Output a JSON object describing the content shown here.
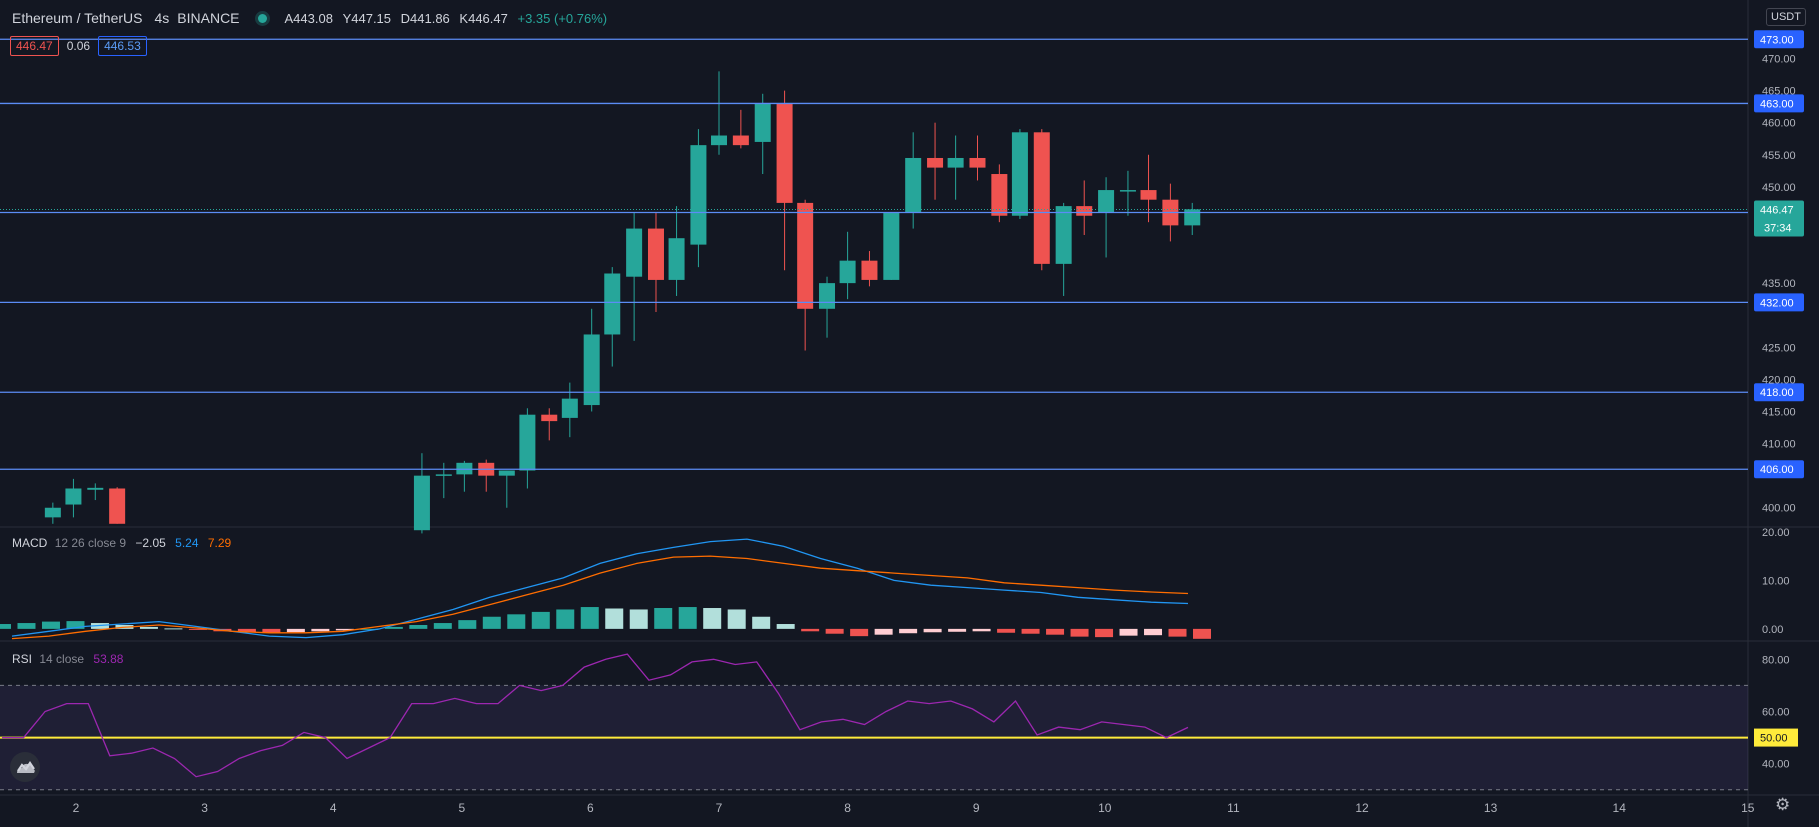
{
  "header": {
    "symbol": "Ethereum / TetherUS",
    "interval": "4s",
    "exchange": "BINANCE",
    "open": "A443.08",
    "high": "Y447.15",
    "low": "D441.86",
    "close": "K446.47",
    "change": "+3.35 (+0.76%)"
  },
  "quote": {
    "bid": "446.47",
    "spread": "0.06",
    "ask": "446.53"
  },
  "currency_label": "USDT",
  "macd": {
    "title": "MACD",
    "params": "12 26 close 9",
    "hist": "−2.05",
    "macd": "5.24",
    "signal": "7.29"
  },
  "rsi": {
    "title": "RSI",
    "params": "14 close",
    "value": "53.88"
  },
  "countdown": "37:34",
  "colors": {
    "background": "#131722",
    "up": "#26a69a",
    "down": "#ef5350",
    "level_line": "#5b8cf5",
    "macd_line": "#2196f3",
    "signal_line": "#ff6d00",
    "rsi_line": "#9c27b0",
    "rsi_mid": "#ffeb3b"
  },
  "icons": {
    "logo": "tradingview-logo-icon",
    "settings": "gear-icon"
  },
  "chart_data": {
    "type": "candlestick",
    "x_ticks": [
      "2",
      "3",
      "4",
      "5",
      "6",
      "7",
      "8",
      "9",
      "10",
      "11",
      "12",
      "13",
      "14",
      "15"
    ],
    "price_ticks": [
      "470.00",
      "465.00",
      "460.00",
      "455.00",
      "450.00",
      "435.00",
      "425.00",
      "420.00",
      "415.00",
      "410.00",
      "400.00"
    ],
    "price_range": [
      397,
      476
    ],
    "horizontal_levels": [
      "473.00",
      "463.00",
      "446.00",
      "432.00",
      "418.00",
      "406.00"
    ],
    "last_price": "446.47",
    "candles": [
      {
        "x": 1.82,
        "o": 398.5,
        "h": 400.8,
        "l": 397.5,
        "c": 400.0
      },
      {
        "x": 1.98,
        "o": 400.5,
        "h": 404.5,
        "l": 398.5,
        "c": 403.0
      },
      {
        "x": 2.15,
        "o": 402.8,
        "h": 403.8,
        "l": 401.2,
        "c": 403.1
      },
      {
        "x": 2.32,
        "o": 403.0,
        "h": 403.2,
        "l": 397.5,
        "c": 397.5
      },
      {
        "x": 4.69,
        "o": 396.5,
        "h": 408.5,
        "l": 396.0,
        "c": 405.0
      },
      {
        "x": 4.86,
        "o": 405.0,
        "h": 407.0,
        "l": 401.5,
        "c": 405.2
      },
      {
        "x": 5.02,
        "o": 405.2,
        "h": 407.3,
        "l": 402.5,
        "c": 407.0
      },
      {
        "x": 5.19,
        "o": 407.0,
        "h": 407.5,
        "l": 402.5,
        "c": 405.0
      },
      {
        "x": 5.35,
        "o": 405.0,
        "h": 405.8,
        "l": 400.0,
        "c": 405.8
      },
      {
        "x": 5.51,
        "o": 405.8,
        "h": 415.5,
        "l": 403.0,
        "c": 414.5
      },
      {
        "x": 5.68,
        "o": 414.5,
        "h": 415.5,
        "l": 410.5,
        "c": 413.5
      },
      {
        "x": 5.84,
        "o": 414.0,
        "h": 419.5,
        "l": 411.0,
        "c": 417.0
      },
      {
        "x": 6.01,
        "o": 416.0,
        "h": 431.0,
        "l": 415.0,
        "c": 427.0
      },
      {
        "x": 6.17,
        "o": 427.0,
        "h": 437.5,
        "l": 422.0,
        "c": 436.5
      },
      {
        "x": 6.34,
        "o": 436.0,
        "h": 446.0,
        "l": 426.0,
        "c": 443.5
      },
      {
        "x": 6.51,
        "o": 443.5,
        "h": 446.0,
        "l": 430.5,
        "c": 435.5
      },
      {
        "x": 6.67,
        "o": 435.5,
        "h": 447.0,
        "l": 433.0,
        "c": 442.0
      },
      {
        "x": 6.84,
        "o": 441.0,
        "h": 459.0,
        "l": 437.5,
        "c": 456.5
      },
      {
        "x": 7.0,
        "o": 456.5,
        "h": 468.0,
        "l": 455.0,
        "c": 458.0
      },
      {
        "x": 7.17,
        "o": 458.0,
        "h": 462.0,
        "l": 456.0,
        "c": 456.5
      },
      {
        "x": 7.34,
        "o": 457.0,
        "h": 464.5,
        "l": 452.0,
        "c": 463.0
      },
      {
        "x": 7.51,
        "o": 463.0,
        "h": 465.0,
        "l": 437.0,
        "c": 447.5
      },
      {
        "x": 7.67,
        "o": 447.5,
        "h": 448.0,
        "l": 424.5,
        "c": 431.0
      },
      {
        "x": 7.84,
        "o": 431.0,
        "h": 436.0,
        "l": 426.5,
        "c": 435.0
      },
      {
        "x": 8.0,
        "o": 435.0,
        "h": 443.0,
        "l": 432.5,
        "c": 438.5
      },
      {
        "x": 8.17,
        "o": 438.5,
        "h": 440.0,
        "l": 434.5,
        "c": 435.5
      },
      {
        "x": 8.34,
        "o": 435.5,
        "h": 446.0,
        "l": 435.5,
        "c": 446.0
      },
      {
        "x": 8.51,
        "o": 446.0,
        "h": 458.5,
        "l": 443.5,
        "c": 454.5
      },
      {
        "x": 8.68,
        "o": 454.5,
        "h": 460.0,
        "l": 448.0,
        "c": 453.0
      },
      {
        "x": 8.84,
        "o": 453.0,
        "h": 458.0,
        "l": 448.0,
        "c": 454.5
      },
      {
        "x": 9.01,
        "o": 454.5,
        "h": 458.0,
        "l": 451.0,
        "c": 453.0
      },
      {
        "x": 9.18,
        "o": 452.0,
        "h": 453.5,
        "l": 444.5,
        "c": 445.5
      },
      {
        "x": 9.34,
        "o": 445.5,
        "h": 459.0,
        "l": 445.0,
        "c": 458.5
      },
      {
        "x": 9.51,
        "o": 458.5,
        "h": 459.0,
        "l": 437.0,
        "c": 438.0
      },
      {
        "x": 9.68,
        "o": 438.0,
        "h": 447.5,
        "l": 433.0,
        "c": 447.0
      },
      {
        "x": 9.84,
        "o": 447.0,
        "h": 451.0,
        "l": 442.5,
        "c": 445.5
      },
      {
        "x": 10.01,
        "o": 446.0,
        "h": 451.5,
        "l": 439.0,
        "c": 449.5
      },
      {
        "x": 10.18,
        "o": 449.5,
        "h": 452.5,
        "l": 445.5,
        "c": 449.5
      },
      {
        "x": 10.34,
        "o": 449.5,
        "h": 455.0,
        "l": 444.5,
        "c": 448.0
      },
      {
        "x": 10.51,
        "o": 448.0,
        "h": 450.5,
        "l": 441.5,
        "c": 444.0
      },
      {
        "x": 10.68,
        "o": 444.0,
        "h": 447.5,
        "l": 442.5,
        "c": 446.5
      }
    ],
    "macd_ticks": [
      "20.00",
      "10.00",
      "0.00"
    ],
    "macd_range": [
      -2.5,
      21
    ],
    "macd_line": [
      -1.5,
      -0.5,
      0.5,
      1.0,
      1.5,
      0.5,
      -0.5,
      -1.5,
      -1.8,
      -1.2,
      0.0,
      2.0,
      4.0,
      6.5,
      8.5,
      10.5,
      13.5,
      15.5,
      16.8,
      18.0,
      18.5,
      17.0,
      14.5,
      12.5,
      10.0,
      9.0,
      8.5,
      8.0,
      7.5,
      6.5,
      6.0,
      5.5,
      5.24
    ],
    "signal_line": [
      -2.0,
      -1.5,
      -0.5,
      0.3,
      0.8,
      0.2,
      -0.5,
      -0.8,
      -0.8,
      -0.5,
      0.5,
      1.5,
      3.0,
      5.0,
      7.0,
      9.0,
      11.5,
      13.5,
      14.8,
      15.0,
      14.5,
      13.5,
      12.5,
      12.0,
      11.5,
      11.0,
      10.5,
      9.5,
      9.0,
      8.5,
      8.0,
      7.6,
      7.29
    ],
    "macd_histogram": [
      1.0,
      1.2,
      1.5,
      1.6,
      1.2,
      0.8,
      0.4,
      0.1,
      -0.2,
      -0.5,
      -0.7,
      -0.8,
      -0.7,
      -0.5,
      -0.3,
      0.0,
      0.4,
      0.8,
      1.2,
      1.8,
      2.5,
      3.0,
      3.5,
      4.0,
      4.5,
      4.2,
      4.0,
      4.3,
      4.5,
      4.3,
      4.0,
      2.5,
      1.0,
      -0.5,
      -1.0,
      -1.5,
      -1.2,
      -0.9,
      -0.7,
      -0.6,
      -0.5,
      -0.8,
      -1.0,
      -1.2,
      -1.6,
      -1.7,
      -1.4,
      -1.3,
      -1.6,
      -2.05
    ],
    "rsi_ticks": [
      "80.00",
      "60.00",
      "50.00",
      "40.00"
    ],
    "rsi_range": [
      28,
      87
    ],
    "rsi_band": [
      30,
      70
    ],
    "rsi_mid": 50,
    "rsi_series": [
      50,
      50,
      60,
      63,
      63,
      43,
      44,
      46,
      42,
      35,
      37,
      42,
      45,
      47,
      52,
      50,
      42,
      46,
      50,
      63,
      63,
      65,
      63,
      63,
      70,
      68,
      70,
      77,
      80,
      82,
      72,
      74,
      79,
      80,
      78,
      79,
      67,
      53,
      56,
      57,
      55,
      60,
      64,
      63,
      64,
      61,
      56,
      64,
      51,
      54,
      53,
      56,
      55,
      54,
      50,
      53.88
    ]
  }
}
